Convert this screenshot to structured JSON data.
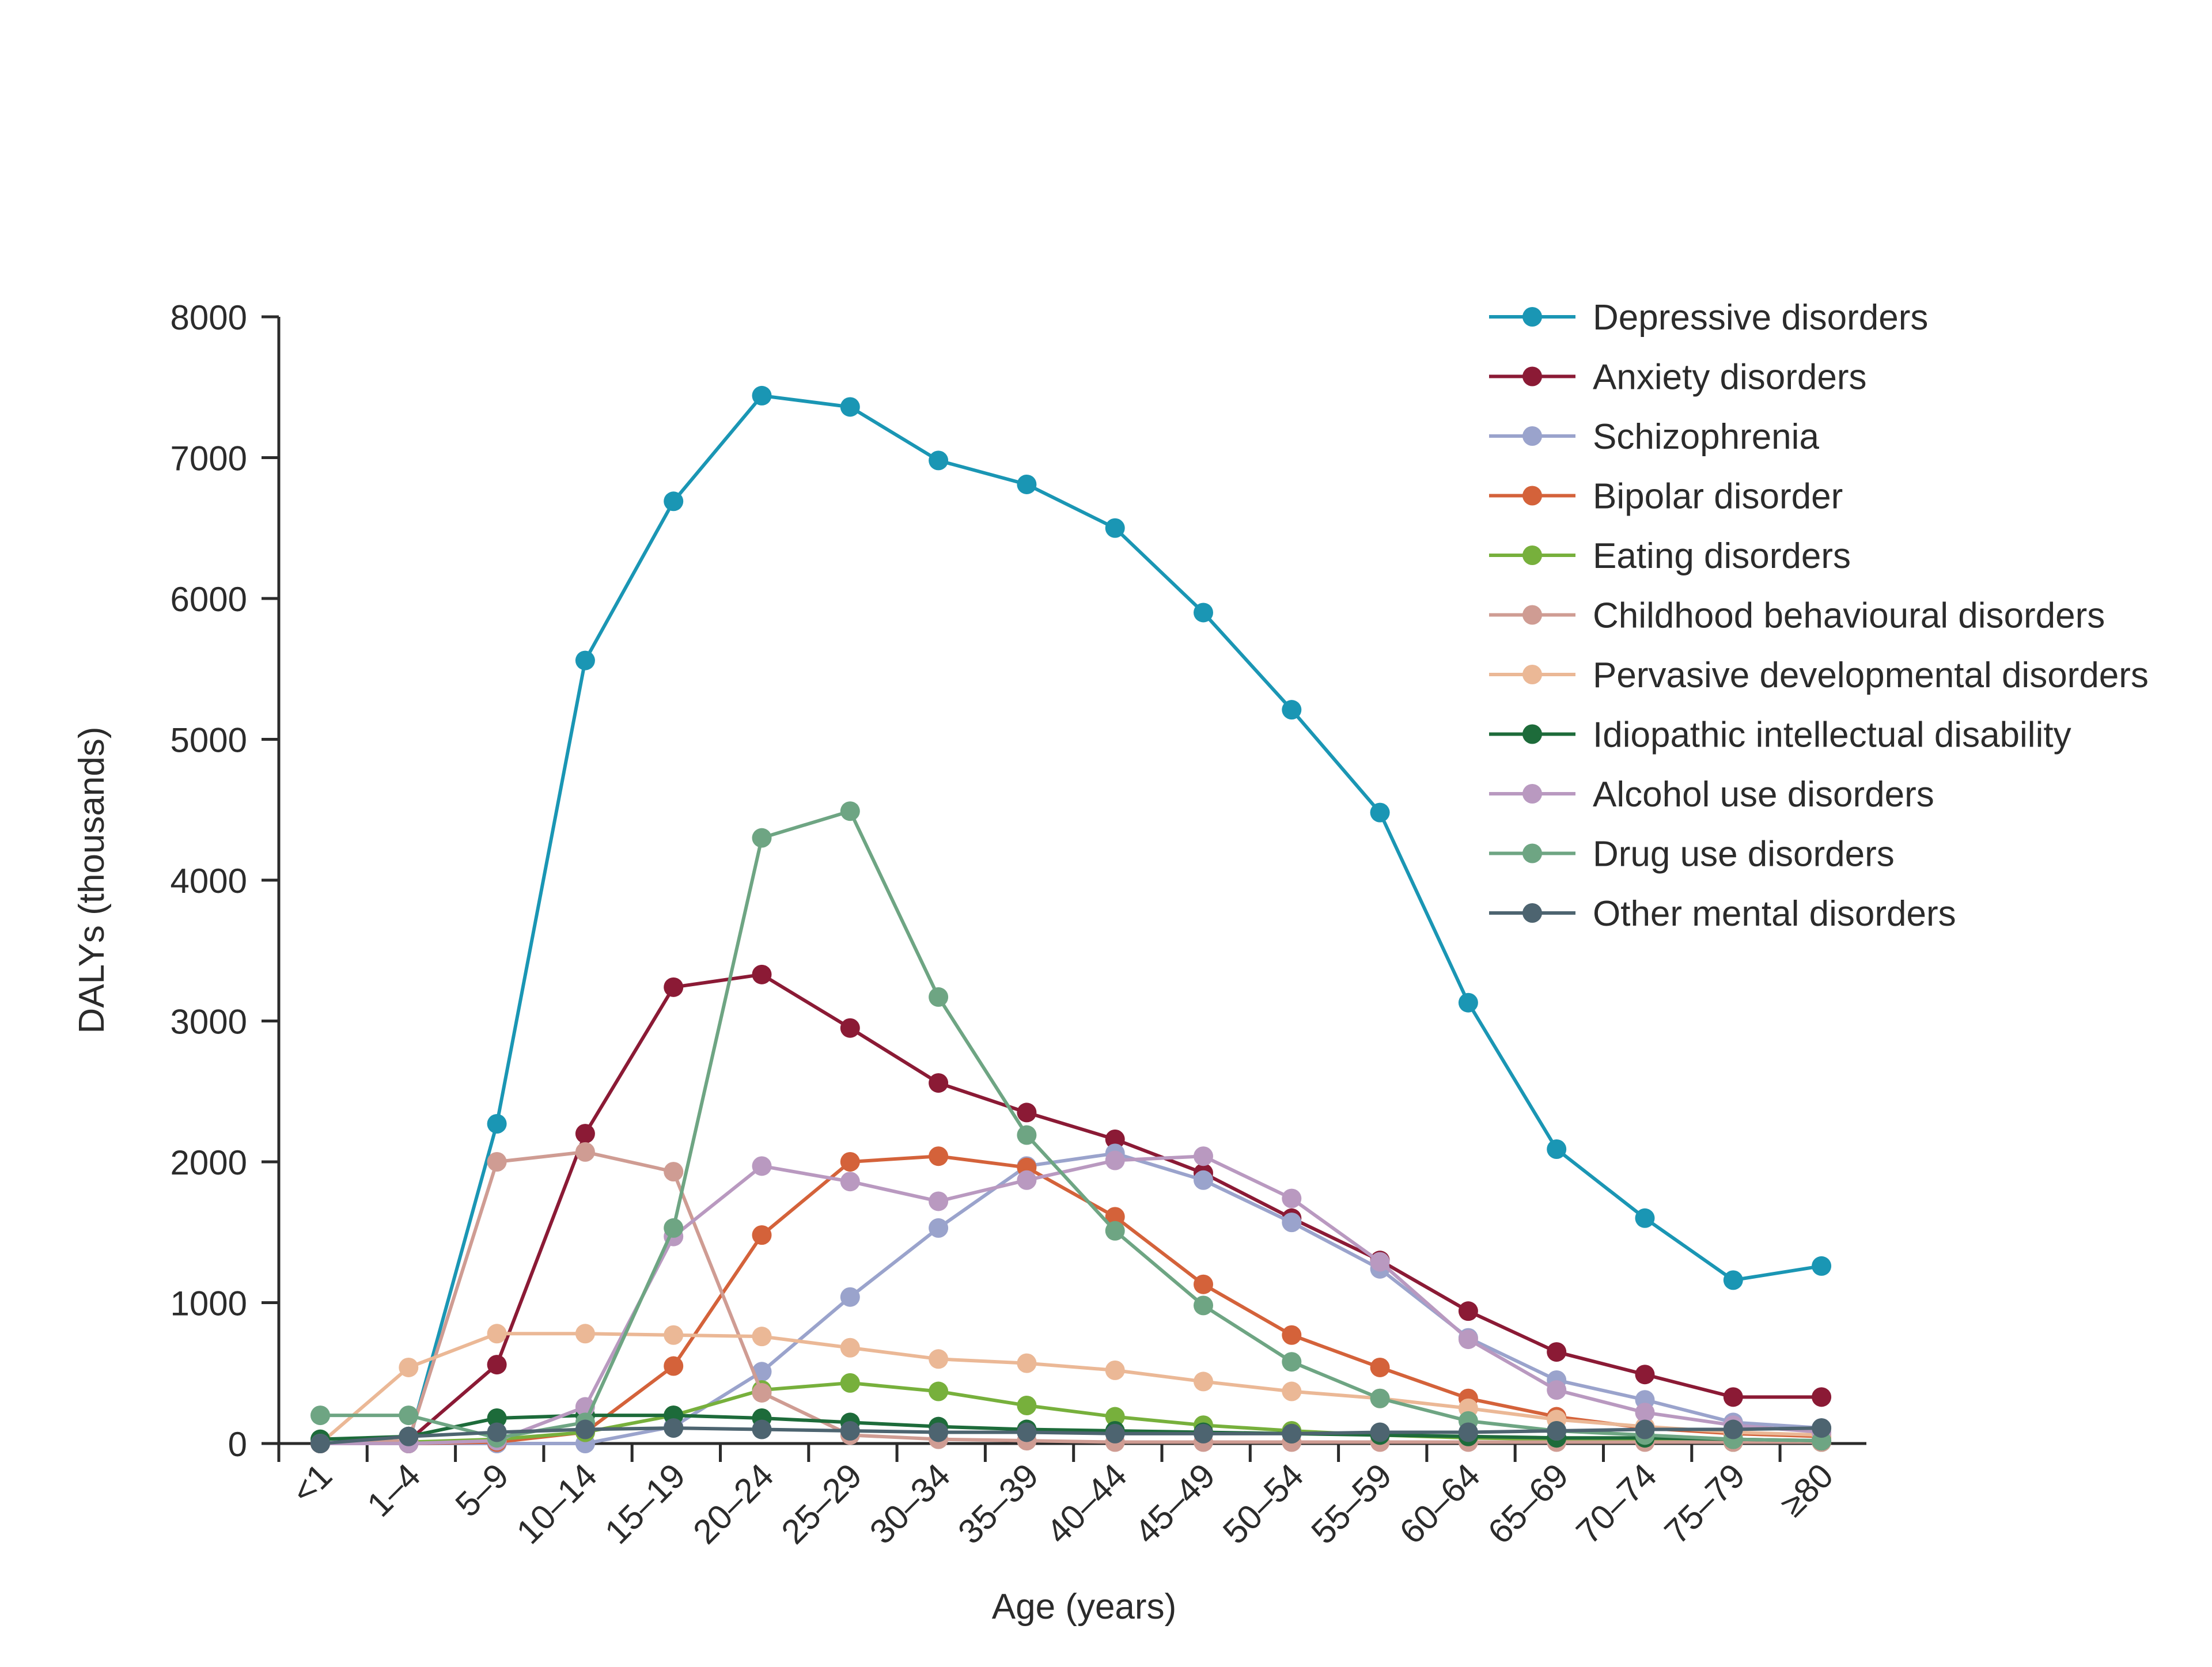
{
  "chart_data": {
    "type": "line",
    "title": "",
    "xlabel": "Age (years)",
    "ylabel": "DALYs (thousands)",
    "ylim": [
      0,
      8000
    ],
    "yticks": [
      0,
      1000,
      2000,
      3000,
      4000,
      5000,
      6000,
      7000,
      8000
    ],
    "ytick_labels": [
      "0",
      "1000",
      "2000",
      "3000",
      "4000",
      "5000",
      "6000",
      "7000",
      "8000"
    ],
    "grid": false,
    "legend_position": "top-right",
    "categories": [
      "<1",
      "1–4",
      "5–9",
      "10–14",
      "15–19",
      "20–24",
      "25–29",
      "30–34",
      "35–39",
      "40–44",
      "45–49",
      "50–54",
      "55–59",
      "60–64",
      "65–69",
      "70–74",
      "75–79",
      "≥80"
    ],
    "series": [
      {
        "name": "Depressive disorders",
        "color": "#1a96b4",
        "values": [
          0,
          0,
          2270,
          5560,
          6690,
          7440,
          7360,
          6980,
          6810,
          6500,
          5900,
          5210,
          4480,
          3130,
          2090,
          1600,
          1160,
          1260
        ]
      },
      {
        "name": "Anxiety disorders",
        "color": "#8b1a35",
        "values": [
          0,
          20,
          560,
          2200,
          3240,
          3330,
          2950,
          2560,
          2350,
          2160,
          1920,
          1600,
          1300,
          940,
          650,
          490,
          330,
          330
        ]
      },
      {
        "name": "Schizophrenia",
        "color": "#9aa3cc",
        "values": [
          0,
          0,
          0,
          0,
          120,
          510,
          1040,
          1530,
          1970,
          2060,
          1870,
          1570,
          1240,
          750,
          450,
          310,
          150,
          110
        ]
      },
      {
        "name": "Bipolar disorder",
        "color": "#d4623a",
        "values": [
          0,
          0,
          10,
          80,
          550,
          1480,
          2000,
          2040,
          1960,
          1610,
          1130,
          770,
          540,
          320,
          190,
          110,
          70,
          50
        ]
      },
      {
        "name": "Eating disorders",
        "color": "#77b03c",
        "values": [
          0,
          10,
          30,
          80,
          200,
          380,
          430,
          370,
          270,
          190,
          130,
          90,
          60,
          40,
          30,
          20,
          10,
          10
        ]
      },
      {
        "name": "Childhood behavioural disorders",
        "color": "#cf9c93",
        "values": [
          0,
          20,
          2000,
          2070,
          1930,
          360,
          60,
          30,
          20,
          10,
          10,
          10,
          10,
          10,
          10,
          10,
          10,
          10
        ]
      },
      {
        "name": "Pervasive developmental disorders",
        "color": "#ebb896",
        "values": [
          0,
          540,
          780,
          780,
          770,
          760,
          680,
          600,
          570,
          520,
          440,
          370,
          320,
          250,
          170,
          120,
          80,
          60
        ]
      },
      {
        "name": "Idiopathic intellectual disability",
        "color": "#1d6b3a",
        "values": [
          30,
          50,
          180,
          200,
          200,
          180,
          150,
          120,
          100,
          90,
          80,
          70,
          60,
          50,
          40,
          40,
          30,
          20
        ]
      },
      {
        "name": "Alcohol use disorders",
        "color": "#b999c0",
        "values": [
          0,
          0,
          20,
          260,
          1470,
          1970,
          1860,
          1720,
          1870,
          2010,
          2040,
          1740,
          1290,
          740,
          380,
          220,
          130,
          80
        ]
      },
      {
        "name": "Drug use disorders",
        "color": "#6ea583",
        "values": [
          200,
          200,
          40,
          150,
          1530,
          4300,
          4490,
          3170,
          2190,
          1510,
          980,
          580,
          320,
          160,
          90,
          60,
          30,
          20
        ]
      },
      {
        "name": "Other mental disorders",
        "color": "#4d6470",
        "values": [
          0,
          50,
          80,
          100,
          110,
          100,
          90,
          80,
          80,
          70,
          70,
          70,
          80,
          80,
          90,
          100,
          100,
          110
        ]
      }
    ]
  }
}
